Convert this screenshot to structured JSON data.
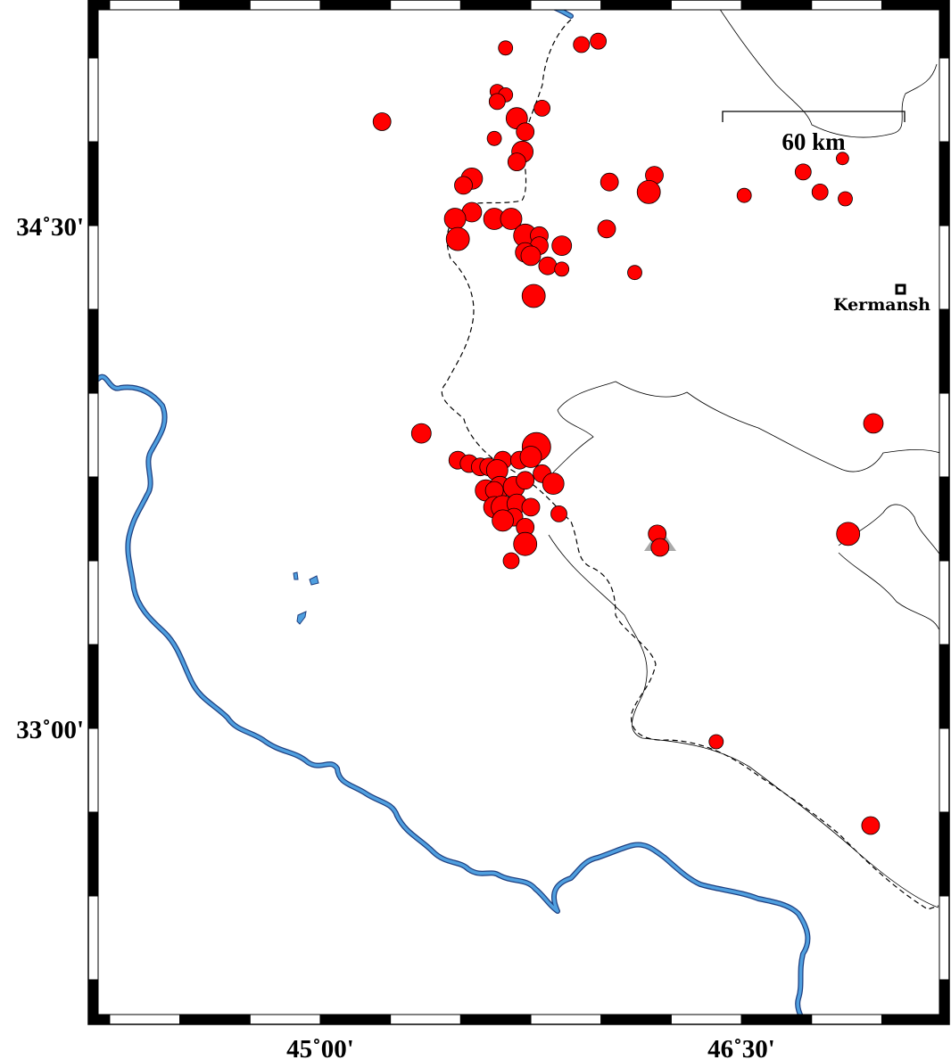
{
  "map": {
    "projection": "mercator",
    "region": {
      "lon": [
        44.174,
        47.24
      ],
      "lat": [
        32.117,
        35.173
      ]
    },
    "colors": {
      "land": "#ffffff",
      "water": "#4f9fdf",
      "event": "#ff0000",
      "border": "#000000",
      "station": "#aaaaaa"
    },
    "axes": {
      "x_ticks": [
        {
          "lon": 45.0,
          "label": "45˚00'"
        },
        {
          "lon": 46.5,
          "label": "46˚30'"
        }
      ],
      "y_ticks": [
        {
          "lat": 34.5,
          "label": "34˚30'"
        },
        {
          "lat": 33.0,
          "label": "33˚00'"
        }
      ],
      "frame_interval_deg": [
        0.25,
        0.75
      ]
    },
    "scale_bar": {
      "label": "60 km",
      "length_km": 60
    },
    "city": {
      "name": "Kermansh",
      "lon": 47.05,
      "lat": 34.31,
      "icon": "square-marker"
    },
    "station": {
      "icon": "triangle",
      "lon": 46.21,
      "lat": 33.56
    }
  },
  "events": [
    {
      "lon": 45.66,
      "lat": 35.03,
      "m": 3.2
    },
    {
      "lon": 45.93,
      "lat": 35.04,
      "m": 3.6
    },
    {
      "lon": 45.99,
      "lat": 35.05,
      "m": 3.6
    },
    {
      "lon": 45.63,
      "lat": 34.9,
      "m": 3.2
    },
    {
      "lon": 45.66,
      "lat": 34.89,
      "m": 3.2
    },
    {
      "lon": 45.63,
      "lat": 34.87,
      "m": 3.6
    },
    {
      "lon": 45.7,
      "lat": 34.82,
      "m": 4.8
    },
    {
      "lon": 45.79,
      "lat": 34.85,
      "m": 3.6
    },
    {
      "lon": 45.22,
      "lat": 34.81,
      "m": 4.0
    },
    {
      "lon": 45.73,
      "lat": 34.78,
      "m": 4.0
    },
    {
      "lon": 45.62,
      "lat": 34.76,
      "m": 3.2
    },
    {
      "lon": 45.72,
      "lat": 34.72,
      "m": 4.8
    },
    {
      "lon": 45.7,
      "lat": 34.69,
      "m": 4.0
    },
    {
      "lon": 45.54,
      "lat": 34.64,
      "m": 4.8
    },
    {
      "lon": 45.51,
      "lat": 34.62,
      "m": 4.0
    },
    {
      "lon": 46.03,
      "lat": 34.63,
      "m": 4.0
    },
    {
      "lon": 46.19,
      "lat": 34.65,
      "m": 4.0
    },
    {
      "lon": 46.17,
      "lat": 34.6,
      "m": 5.2
    },
    {
      "lon": 46.51,
      "lat": 34.59,
      "m": 3.2
    },
    {
      "lon": 46.72,
      "lat": 34.66,
      "m": 3.6
    },
    {
      "lon": 46.86,
      "lat": 34.7,
      "m": 2.8
    },
    {
      "lon": 46.78,
      "lat": 34.6,
      "m": 3.6
    },
    {
      "lon": 46.87,
      "lat": 34.58,
      "m": 3.2
    },
    {
      "lon": 45.54,
      "lat": 34.54,
      "m": 4.4
    },
    {
      "lon": 45.48,
      "lat": 34.52,
      "m": 4.8
    },
    {
      "lon": 45.62,
      "lat": 34.52,
      "m": 4.8
    },
    {
      "lon": 45.68,
      "lat": 34.52,
      "m": 4.8
    },
    {
      "lon": 45.49,
      "lat": 34.46,
      "m": 5.2
    },
    {
      "lon": 45.73,
      "lat": 34.47,
      "m": 5.2
    },
    {
      "lon": 45.78,
      "lat": 34.47,
      "m": 4.0
    },
    {
      "lon": 45.78,
      "lat": 34.44,
      "m": 4.0
    },
    {
      "lon": 45.73,
      "lat": 34.42,
      "m": 4.4
    },
    {
      "lon": 45.75,
      "lat": 34.41,
      "m": 4.4
    },
    {
      "lon": 45.86,
      "lat": 34.44,
      "m": 4.4
    },
    {
      "lon": 46.02,
      "lat": 34.49,
      "m": 4.0
    },
    {
      "lon": 45.81,
      "lat": 34.38,
      "m": 4.0
    },
    {
      "lon": 45.86,
      "lat": 34.37,
      "m": 3.2
    },
    {
      "lon": 46.12,
      "lat": 34.36,
      "m": 3.2
    },
    {
      "lon": 45.76,
      "lat": 34.29,
      "m": 5.2
    },
    {
      "lon": 45.36,
      "lat": 33.88,
      "m": 4.4
    },
    {
      "lon": 45.49,
      "lat": 33.8,
      "m": 4.0
    },
    {
      "lon": 45.53,
      "lat": 33.79,
      "m": 4.0
    },
    {
      "lon": 45.57,
      "lat": 33.78,
      "m": 4.0
    },
    {
      "lon": 45.6,
      "lat": 33.78,
      "m": 4.0
    },
    {
      "lon": 45.65,
      "lat": 33.8,
      "m": 4.0
    },
    {
      "lon": 45.71,
      "lat": 33.8,
      "m": 4.0
    },
    {
      "lon": 45.77,
      "lat": 33.84,
      "m": 6.4
    },
    {
      "lon": 45.75,
      "lat": 33.81,
      "m": 4.8
    },
    {
      "lon": 45.79,
      "lat": 33.76,
      "m": 4.0
    },
    {
      "lon": 45.83,
      "lat": 33.73,
      "m": 4.8
    },
    {
      "lon": 45.63,
      "lat": 33.77,
      "m": 4.8
    },
    {
      "lon": 45.59,
      "lat": 33.71,
      "m": 4.8
    },
    {
      "lon": 45.64,
      "lat": 33.72,
      "m": 4.8
    },
    {
      "lon": 45.69,
      "lat": 33.72,
      "m": 4.8
    },
    {
      "lon": 45.73,
      "lat": 33.74,
      "m": 4.0
    },
    {
      "lon": 45.62,
      "lat": 33.71,
      "m": 4.0
    },
    {
      "lon": 45.62,
      "lat": 33.66,
      "m": 4.8
    },
    {
      "lon": 45.65,
      "lat": 33.66,
      "m": 5.2
    },
    {
      "lon": 45.7,
      "lat": 33.67,
      "m": 4.4
    },
    {
      "lon": 45.75,
      "lat": 33.66,
      "m": 4.0
    },
    {
      "lon": 45.69,
      "lat": 33.63,
      "m": 4.0
    },
    {
      "lon": 45.73,
      "lat": 33.6,
      "m": 4.0
    },
    {
      "lon": 45.65,
      "lat": 33.62,
      "m": 4.8
    },
    {
      "lon": 45.85,
      "lat": 33.64,
      "m": 3.6
    },
    {
      "lon": 45.73,
      "lat": 33.55,
      "m": 5.2
    },
    {
      "lon": 45.68,
      "lat": 33.5,
      "m": 3.6
    },
    {
      "lon": 46.2,
      "lat": 33.58,
      "m": 4.0
    },
    {
      "lon": 46.21,
      "lat": 33.54,
      "m": 4.0
    },
    {
      "lon": 46.97,
      "lat": 33.91,
      "m": 4.4
    },
    {
      "lon": 46.88,
      "lat": 33.58,
      "m": 5.2
    },
    {
      "lon": 46.41,
      "lat": 32.96,
      "m": 3.2
    },
    {
      "lon": 46.96,
      "lat": 32.71,
      "m": 4.0
    }
  ]
}
